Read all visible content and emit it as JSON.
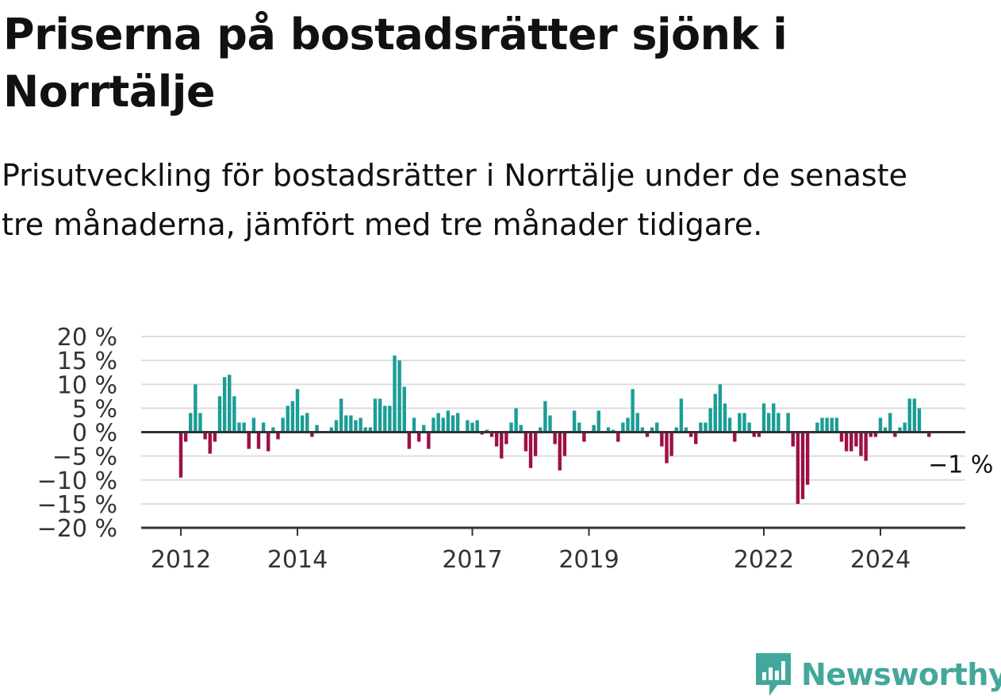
{
  "title": "Priserna på bostadsrätter sjönk i Norrtälje",
  "subtitle": "Prisutveckling för bostadsrätter i Norrtälje under de senaste tre månaderna, jämfört med tre månader tidigare.",
  "brand": {
    "name": "Newsworthy",
    "color": "#43a89b"
  },
  "colors": {
    "positive": "#1a9e96",
    "negative": "#9e0f47",
    "grid": "#dddddd",
    "axis": "#333333"
  },
  "chart_data": {
    "type": "bar",
    "title": "Priserna på bostadsrätter sjönk i Norrtälje",
    "xlabel": "",
    "ylabel": "",
    "ylim": [
      -20,
      20
    ],
    "yticks": [
      "20 %",
      "15 %",
      "10 %",
      "5 %",
      "0 %",
      "−5 %",
      "−10 %",
      "−15 %",
      "−20 %"
    ],
    "xticks": [
      "2012",
      "2014",
      "2017",
      "2019",
      "2022",
      "2024"
    ],
    "start_month": "2012-01",
    "frequency": "monthly",
    "annotation": "−1 %",
    "values": [
      -9.5,
      -2,
      4,
      10,
      4,
      -1.5,
      -4.5,
      -2,
      7.5,
      11.5,
      12,
      7.5,
      2,
      2,
      -3.5,
      3,
      -3.5,
      2,
      -4,
      1,
      -1.5,
      3,
      5.5,
      6.5,
      9,
      3.5,
      4,
      -1,
      1.5,
      0,
      0,
      1,
      2.5,
      7,
      3.5,
      3.5,
      2.5,
      3,
      1,
      1,
      7,
      7,
      5.5,
      5.5,
      16,
      15,
      9.5,
      -3.5,
      3,
      -2,
      1.5,
      -3.5,
      3,
      4,
      3,
      4.5,
      3.5,
      4,
      0,
      2.5,
      2,
      2.5,
      -0.5,
      0.5,
      -1,
      -3,
      -5.5,
      -2.5,
      2,
      5,
      1.5,
      -4,
      -7.5,
      -5,
      1,
      6.5,
      3.5,
      -2.5,
      -8,
      -5,
      0,
      4.5,
      2,
      -2,
      0,
      1.5,
      4.5,
      0,
      1,
      0.5,
      -2,
      2,
      3,
      9,
      4,
      1,
      -1,
      1,
      2,
      -3,
      -6.5,
      -5,
      1,
      7,
      1,
      -1,
      -2.5,
      2,
      2,
      5,
      8,
      10,
      6,
      3,
      -2,
      4,
      4,
      2,
      -1,
      -1,
      6,
      4,
      6,
      4,
      0,
      4,
      -3,
      -15,
      -14,
      -11,
      0,
      2,
      3,
      3,
      3,
      3,
      -2,
      -4,
      -4,
      -3,
      -5,
      -6,
      -1,
      -1,
      3,
      1,
      4,
      -1,
      1,
      2,
      7,
      7,
      5,
      0,
      -1
    ]
  }
}
